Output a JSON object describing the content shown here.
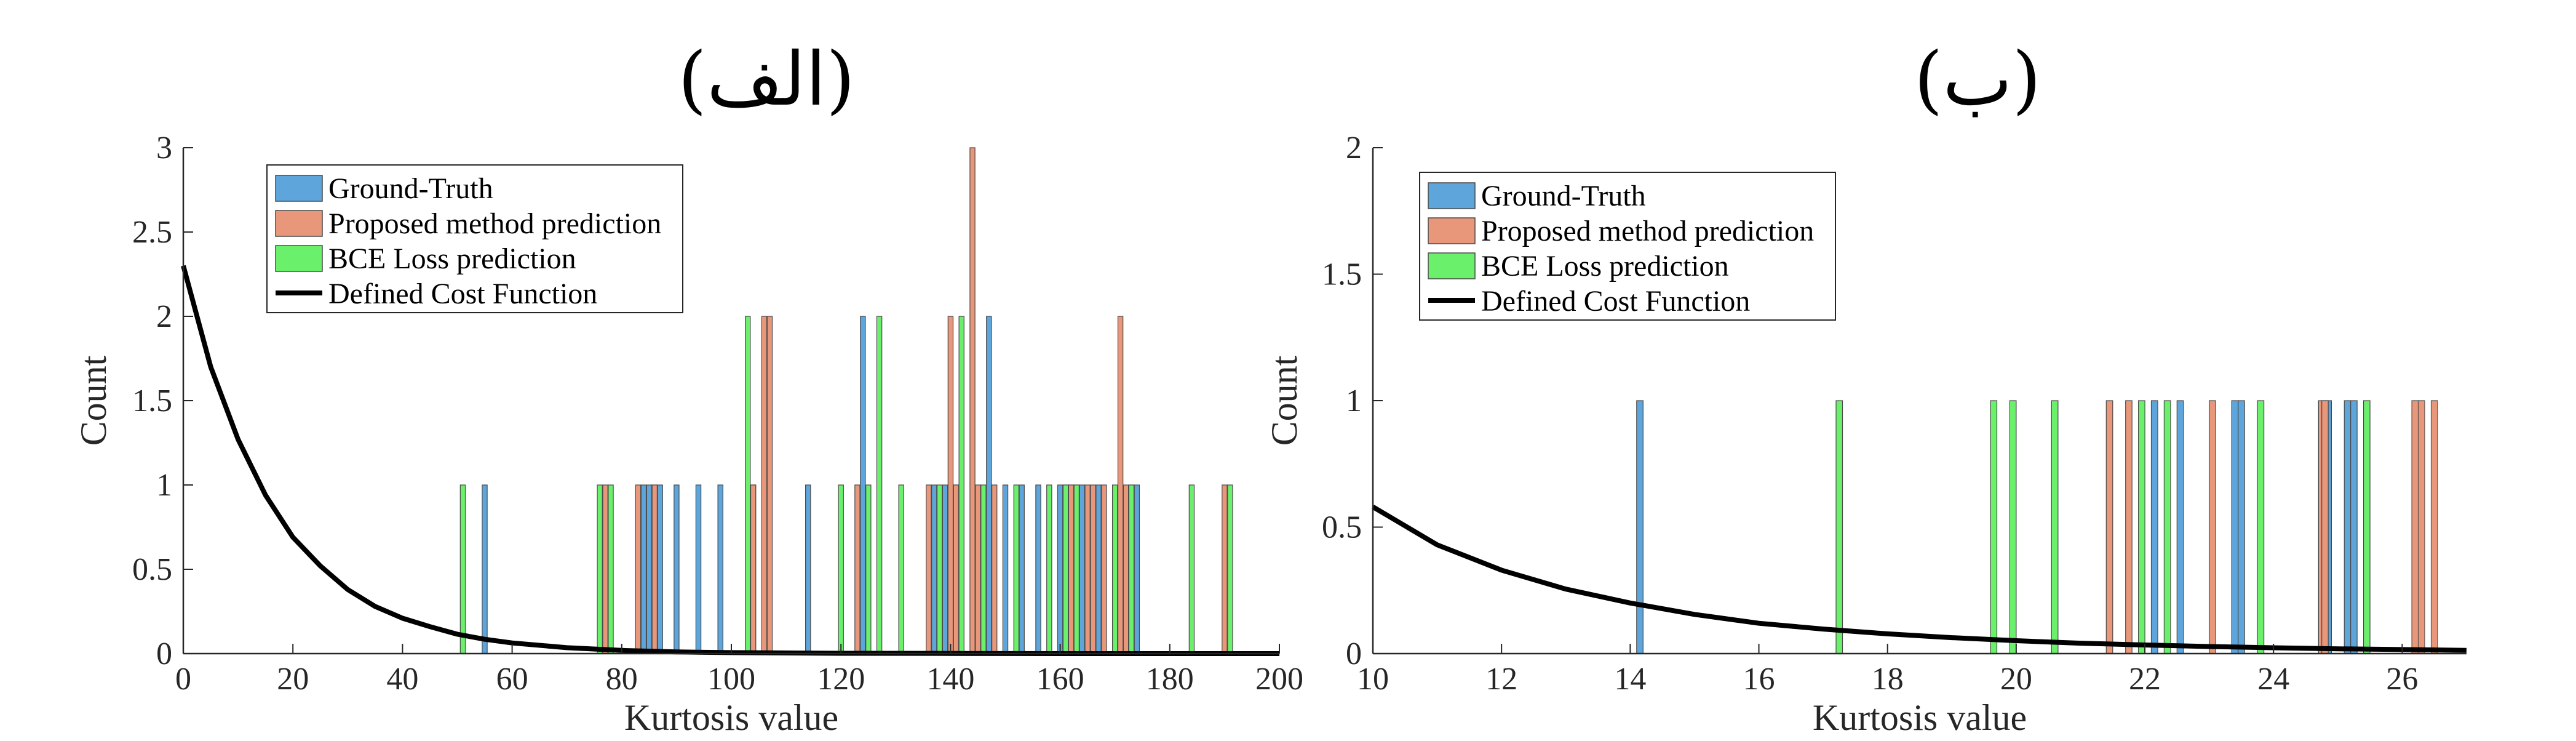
{
  "chart_data": [
    {
      "type": "bar",
      "title": "(الف)",
      "xlabel": "Kurtosis value",
      "ylabel": "Count",
      "xlim": [
        0,
        200
      ],
      "ylim": [
        0,
        3
      ],
      "xticks": [
        "0",
        "20",
        "40",
        "60",
        "80",
        "100",
        "120",
        "140",
        "160",
        "180",
        "200"
      ],
      "yticks": [
        "0",
        "0.5",
        "1",
        "1.5",
        "2",
        "2.5",
        "3"
      ],
      "grid": false,
      "legend": {
        "placement": "top-left"
      },
      "series": [
        {
          "name": "Ground-Truth",
          "color": "#5DA5DA",
          "points": [
            [
              55,
              1
            ],
            [
              84,
              1
            ],
            [
              85,
              1
            ],
            [
              86,
              1
            ],
            [
              87,
              1
            ],
            [
              90,
              1
            ],
            [
              94,
              1
            ],
            [
              98,
              1
            ],
            [
              104,
              1
            ],
            [
              114,
              1
            ],
            [
              124,
              2
            ],
            [
              137,
              1
            ],
            [
              139,
              1
            ],
            [
              141,
              1
            ],
            [
              147,
              2
            ],
            [
              150,
              1
            ],
            [
              153,
              1
            ],
            [
              156,
              1
            ],
            [
              160,
              1
            ],
            [
              162,
              1
            ],
            [
              163,
              1
            ],
            [
              164,
              1
            ],
            [
              167,
              1
            ],
            [
              173,
              1
            ],
            [
              174,
              1
            ]
          ]
        },
        {
          "name": "Proposed method prediction",
          "color": "#E8977A",
          "points": [
            [
              77,
              1
            ],
            [
              83,
              1
            ],
            [
              86,
              1
            ],
            [
              104,
              1
            ],
            [
              106,
              2
            ],
            [
              107,
              2
            ],
            [
              123,
              1
            ],
            [
              136,
              1
            ],
            [
              140,
              2
            ],
            [
              141,
              1
            ],
            [
              144,
              3
            ],
            [
              145,
              1
            ],
            [
              148,
              1
            ],
            [
              161,
              1
            ],
            [
              162,
              1
            ],
            [
              165,
              1
            ],
            [
              166,
              1
            ],
            [
              168,
              1
            ],
            [
              171,
              2
            ],
            [
              172,
              1
            ],
            [
              190,
              1
            ]
          ]
        },
        {
          "name": "BCE Loss prediction",
          "color": "#6BF06B",
          "points": [
            [
              51,
              1
            ],
            [
              76,
              1
            ],
            [
              78,
              1
            ],
            [
              103,
              2
            ],
            [
              120,
              1
            ],
            [
              125,
              1
            ],
            [
              127,
              2
            ],
            [
              131,
              1
            ],
            [
              138,
              1
            ],
            [
              142,
              2
            ],
            [
              146,
              1
            ],
            [
              152,
              1
            ],
            [
              158,
              1
            ],
            [
              161,
              1
            ],
            [
              163,
              1
            ],
            [
              170,
              1
            ],
            [
              173,
              1
            ],
            [
              184,
              1
            ],
            [
              191,
              1
            ]
          ]
        },
        {
          "name": "Defined Cost Function",
          "color": "#000000",
          "type": "line",
          "x": [
            0,
            5,
            10,
            15,
            20,
            25,
            30,
            35,
            40,
            45,
            50,
            55,
            60,
            70,
            80,
            90,
            100,
            120,
            140,
            160,
            180,
            200
          ],
          "y": [
            2.3,
            1.7,
            1.27,
            0.94,
            0.69,
            0.52,
            0.38,
            0.28,
            0.21,
            0.16,
            0.115,
            0.085,
            0.063,
            0.035,
            0.019,
            0.01,
            0.006,
            0.002,
            0.001,
            0,
            0,
            0
          ]
        }
      ]
    },
    {
      "type": "bar",
      "title": "(ب)",
      "xlabel": "Kurtosis value",
      "ylabel": "Count",
      "xlim": [
        10,
        27
      ],
      "ylim": [
        0,
        2
      ],
      "xticks": [
        "10",
        "12",
        "14",
        "16",
        "18",
        "20",
        "22",
        "24",
        "26"
      ],
      "yticks": [
        "0",
        "0.5",
        "1",
        "1.5",
        "2"
      ],
      "grid": false,
      "legend": {
        "placement": "top-left"
      },
      "series": [
        {
          "name": "Ground-Truth",
          "color": "#5DA5DA",
          "points": [
            [
              14.15,
              1
            ],
            [
              22.15,
              1
            ],
            [
              22.55,
              1
            ],
            [
              23.4,
              1
            ],
            [
              23.5,
              1
            ],
            [
              24.85,
              1
            ],
            [
              25.15,
              1
            ],
            [
              25.25,
              1
            ]
          ]
        },
        {
          "name": "Proposed method prediction",
          "color": "#E8977A",
          "points": [
            [
              21.45,
              1
            ],
            [
              21.75,
              1
            ],
            [
              23.05,
              1
            ],
            [
              24.75,
              1
            ],
            [
              24.8,
              1
            ],
            [
              26.2,
              1
            ],
            [
              26.3,
              1
            ],
            [
              26.5,
              1
            ]
          ]
        },
        {
          "name": "BCE Loss prediction",
          "color": "#6BF06B",
          "points": [
            [
              17.25,
              1
            ],
            [
              19.65,
              1
            ],
            [
              19.95,
              1
            ],
            [
              20.6,
              1
            ],
            [
              21.95,
              1
            ],
            [
              22.35,
              1
            ],
            [
              23.8,
              1
            ],
            [
              25.45,
              1
            ]
          ]
        },
        {
          "name": "Defined Cost Function",
          "color": "#000000",
          "type": "line",
          "x": [
            10,
            11,
            12,
            13,
            14,
            15,
            16,
            17,
            18,
            19,
            20,
            21,
            22,
            23,
            24,
            25,
            26,
            27
          ],
          "y": [
            0.58,
            0.43,
            0.33,
            0.255,
            0.2,
            0.155,
            0.12,
            0.097,
            0.078,
            0.063,
            0.051,
            0.041,
            0.034,
            0.028,
            0.023,
            0.019,
            0.016,
            0.013
          ]
        }
      ]
    }
  ]
}
